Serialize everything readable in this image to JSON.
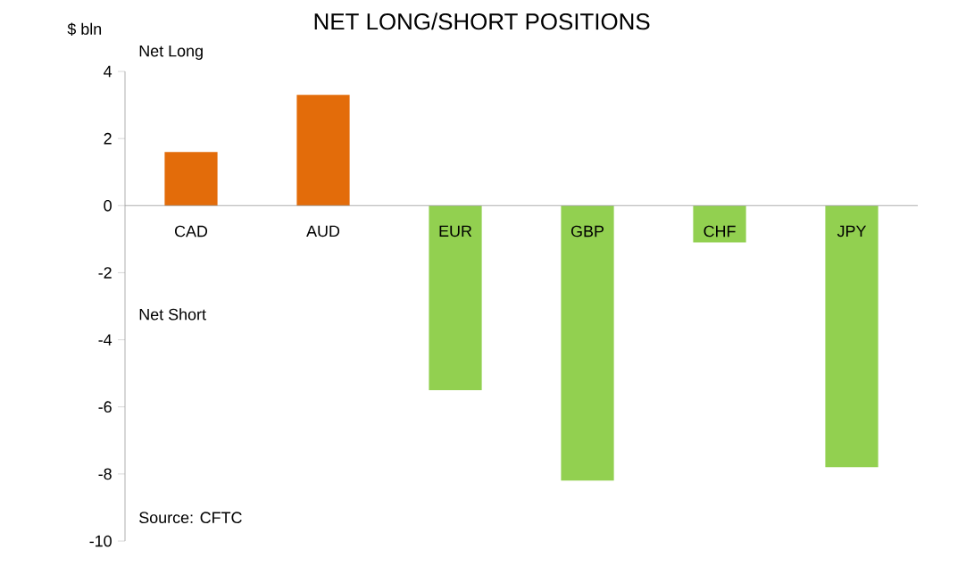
{
  "chart_data": {
    "type": "bar",
    "title": "NET LONG/SHORT POSITIONS",
    "ylabel": "$ bln",
    "categories": [
      "CAD",
      "AUD",
      "EUR",
      "GBP",
      "CHF",
      "JPY"
    ],
    "values": [
      1.6,
      3.3,
      -5.5,
      -8.2,
      -1.1,
      -7.8
    ],
    "colors": [
      "#e36c0a",
      "#e36c0a",
      "#92d050",
      "#92d050",
      "#92d050",
      "#92d050"
    ],
    "ylim": [
      -10,
      4
    ],
    "yticks": [
      -10,
      -8,
      -6,
      -4,
      -2,
      0,
      2,
      4
    ],
    "grid": false,
    "annotations": [
      "Net Long",
      "Net Short",
      "Source: CFTC"
    ]
  }
}
